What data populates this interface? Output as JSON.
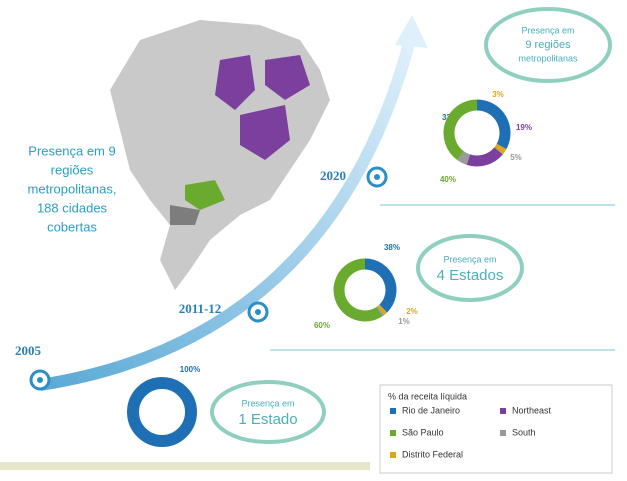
{
  "headline": {
    "lines": [
      "Presença em 9",
      "regiões",
      "metropolitanas,",
      "188 cidades",
      "cobertas"
    ]
  },
  "legend": {
    "title": "% da receita líquida",
    "items": [
      {
        "name": "Rio de Janeiro",
        "color": "#1f6fb4"
      },
      {
        "name": "Northeast",
        "color": "#7b3f9e"
      },
      {
        "name": "São Paulo",
        "color": "#6aaa2e"
      },
      {
        "name": "South",
        "color": "#9a9a9a"
      },
      {
        "name": "Distrito Federal",
        "color": "#d9a81c"
      }
    ]
  },
  "chart_data": [
    {
      "type": "donut",
      "title": "2005",
      "note": [
        "Presença em",
        "1 Estado"
      ],
      "values": [
        100
      ],
      "value_labels": [
        "100%"
      ],
      "colors": [
        "#1f6fb4"
      ]
    },
    {
      "type": "donut",
      "title": "2011-12",
      "note": [
        "Presença em",
        "4 Estados"
      ],
      "values": [
        38,
        2,
        1,
        60
      ],
      "value_labels": [
        "38%",
        "2%",
        "1%",
        "60%"
      ],
      "colors": [
        "#1f6fb4",
        "#d9a81c",
        "#9a9a9a",
        "#6aaa2e"
      ]
    },
    {
      "type": "donut",
      "title": "2020",
      "note": [
        "Presença em",
        "9 regiões",
        "metropolitanas"
      ],
      "values": [
        33,
        3,
        19,
        5,
        40
      ],
      "value_labels": [
        "33%",
        "3%",
        "19%",
        "5%",
        "40%"
      ],
      "colors": [
        "#1f6fb4",
        "#d9a81c",
        "#7b3f9e",
        "#9a9a9a",
        "#6aaa2e"
      ]
    }
  ]
}
